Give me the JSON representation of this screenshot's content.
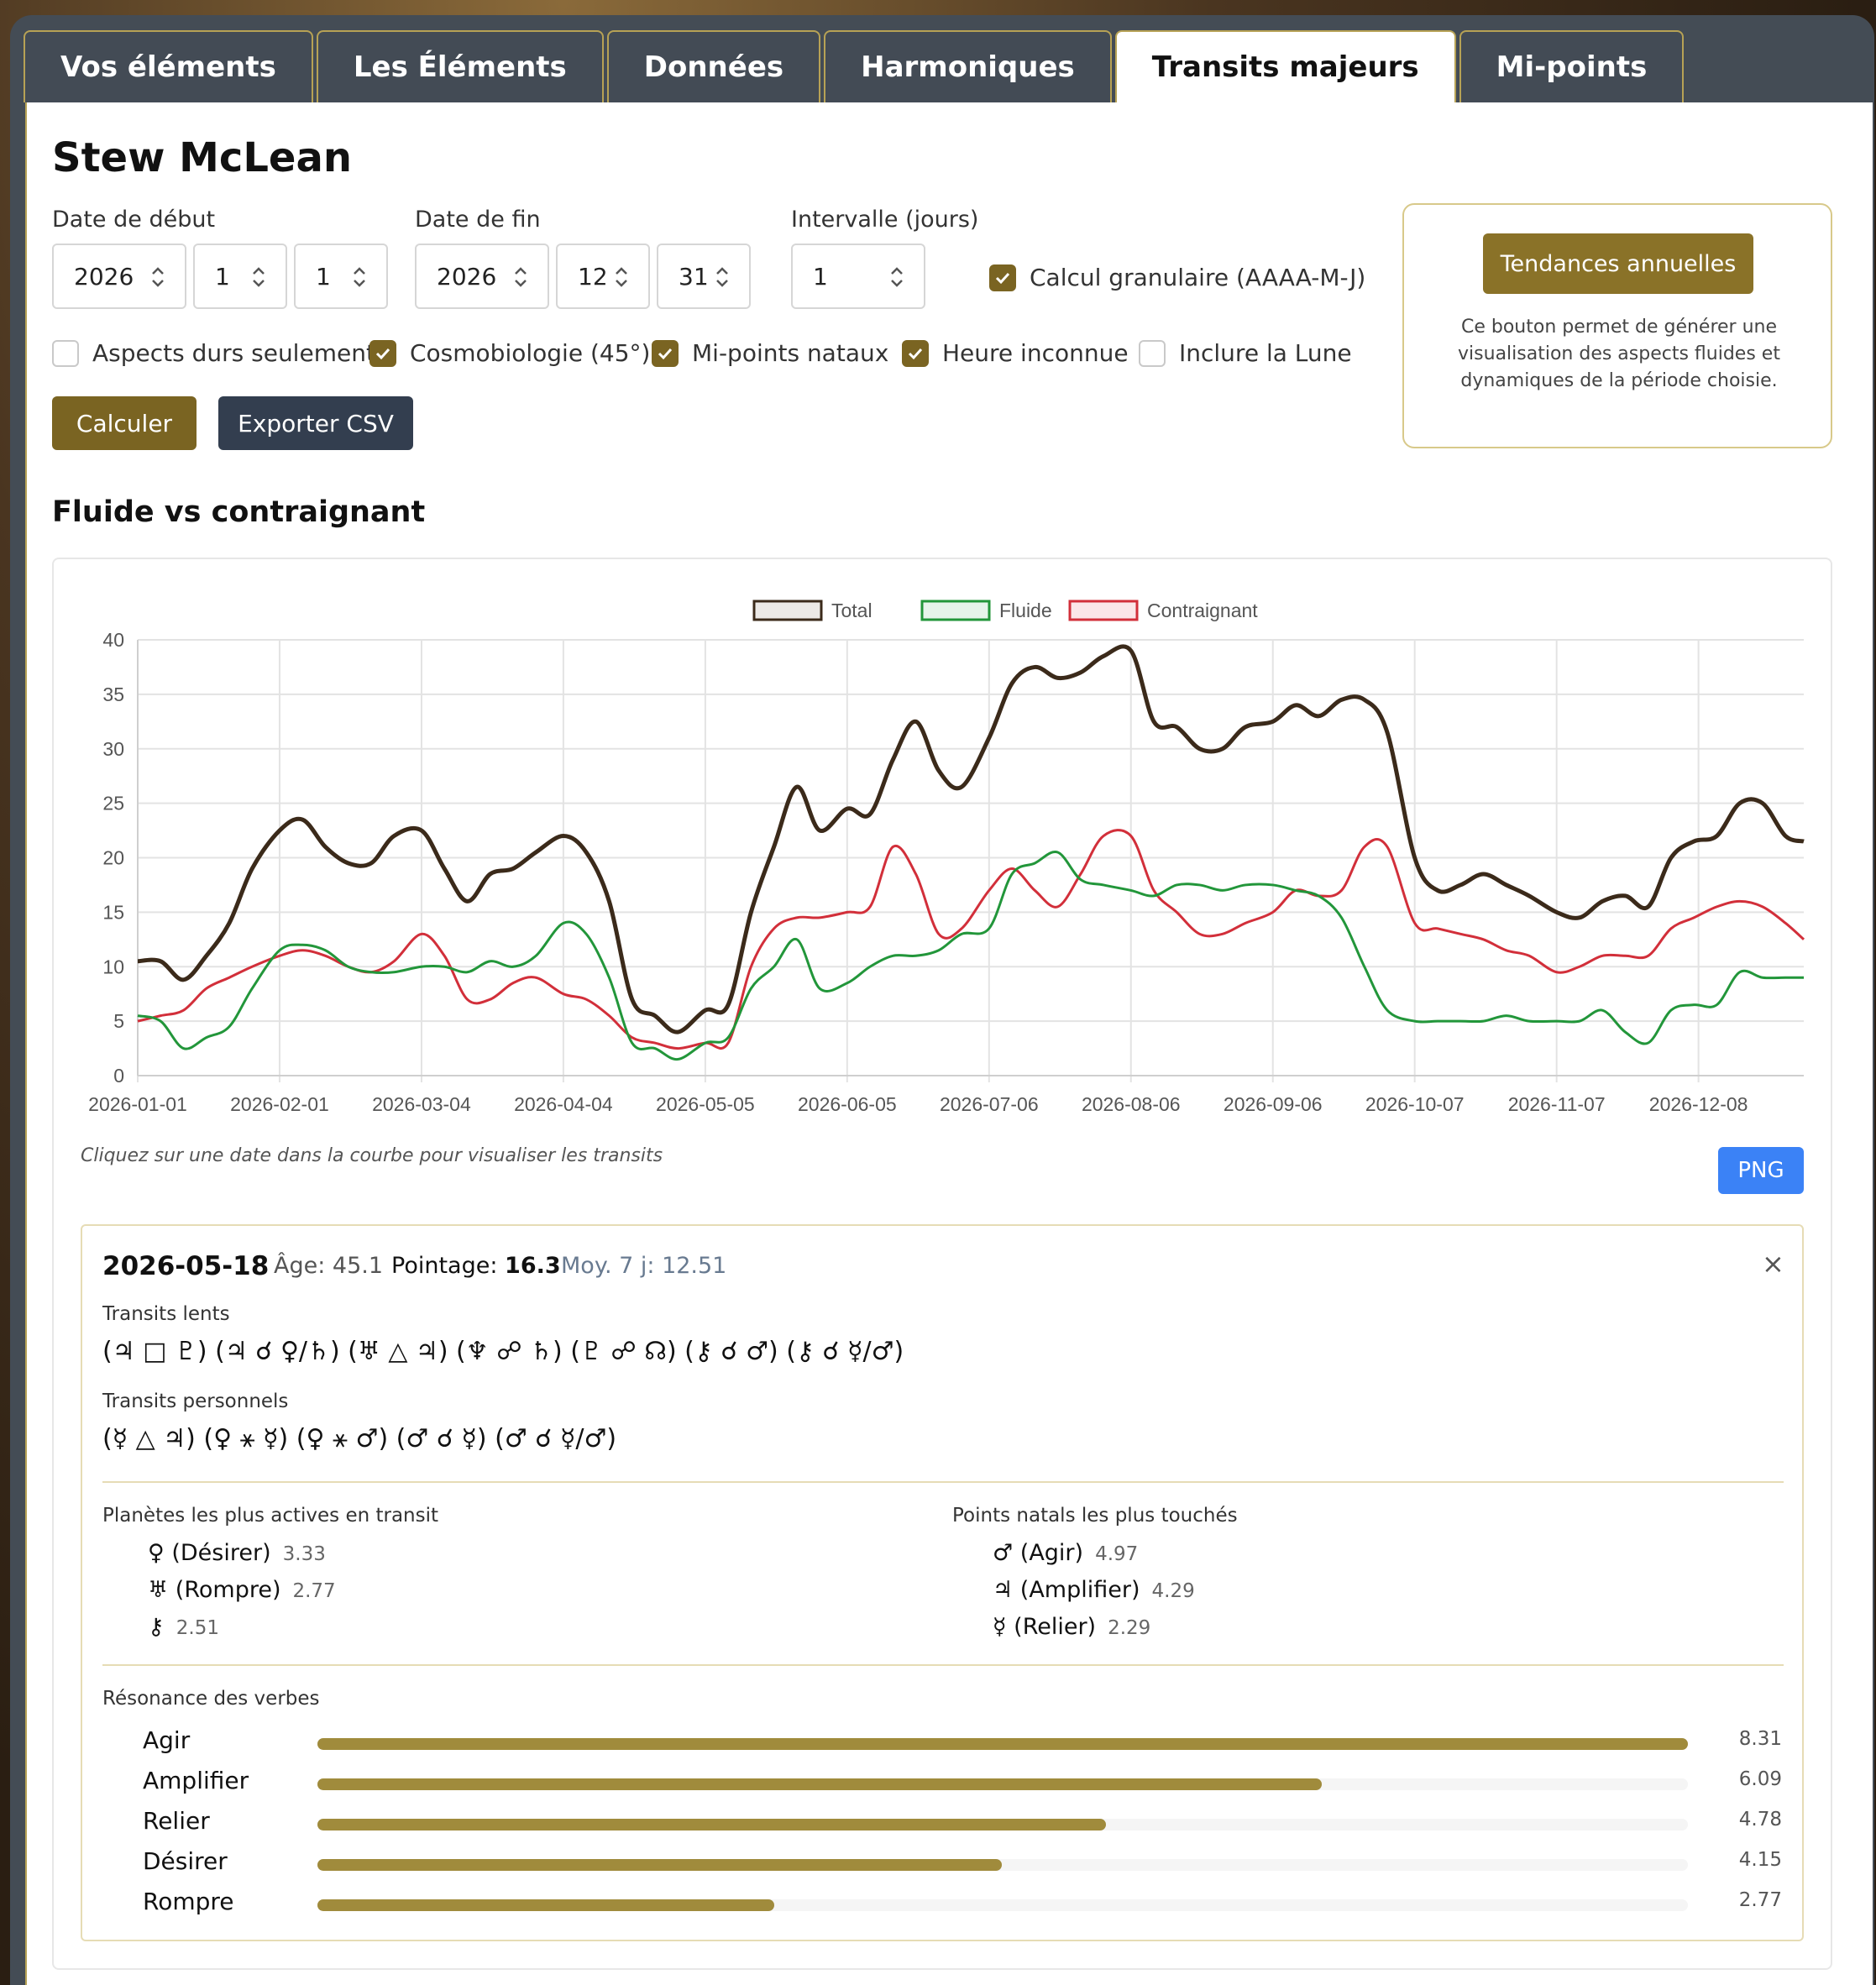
{
  "tabs": [
    "Vos éléments",
    "Les Éléments",
    "Données",
    "Harmoniques",
    "Transits majeurs",
    "Mi-points"
  ],
  "active_tab": 4,
  "person_name": "Stew McLean",
  "form": {
    "start_label": "Date de début",
    "end_label": "Date de fin",
    "interval_label": "Intervalle (jours)",
    "start": {
      "year": "2026",
      "month": "1",
      "day": "1"
    },
    "end": {
      "year": "2026",
      "month": "12",
      "day": "31"
    },
    "interval": "1",
    "granular_label": "Calcul granulaire (AAAA-M-J)",
    "granular_checked": true,
    "options": [
      {
        "label": "Aspects durs seulement",
        "checked": false
      },
      {
        "label": "Cosmobiologie (45°)",
        "checked": true
      },
      {
        "label": "Mi-points nataux",
        "checked": true
      },
      {
        "label": "Heure inconnue",
        "checked": true
      },
      {
        "label": "Inclure la Lune",
        "checked": false
      }
    ],
    "calc_label": "Calculer",
    "export_label": "Exporter CSV"
  },
  "trend": {
    "button_label": "Tendances annuelles",
    "description": "Ce bouton permet de générer une visualisation des aspects fluides et dynamiques de la période choisie."
  },
  "section_title": "Fluide vs contraignant",
  "chart_data": {
    "type": "line",
    "title": "",
    "xlabel": "",
    "ylabel": "",
    "ylim": [
      0,
      40
    ],
    "yticks": [
      0,
      5,
      10,
      15,
      20,
      25,
      30,
      35,
      40
    ],
    "xticks": [
      "2026-01-01",
      "2026-02-01",
      "2026-03-04",
      "2026-04-04",
      "2026-05-05",
      "2026-06-05",
      "2026-07-06",
      "2026-08-06",
      "2026-09-06",
      "2026-10-07",
      "2026-11-07",
      "2026-12-08"
    ],
    "x_day_offsets_note": "x values are days since 2026-01-01",
    "legend_position": "top",
    "grid": true,
    "x": [
      0,
      5,
      10,
      15,
      20,
      25,
      31,
      36,
      41,
      46,
      51,
      56,
      62,
      67,
      72,
      77,
      82,
      87,
      93,
      98,
      103,
      108,
      113,
      118,
      124,
      129,
      134,
      139,
      144,
      149,
      155,
      160,
      165,
      170,
      175,
      180,
      186,
      191,
      196,
      201,
      206,
      211,
      217,
      222,
      227,
      232,
      237,
      242,
      248,
      253,
      258,
      263,
      268,
      273,
      279,
      284,
      289,
      294,
      299,
      304,
      310,
      315,
      320,
      325,
      330,
      335,
      340,
      345,
      350,
      355,
      360,
      364
    ],
    "series": [
      {
        "name": "Total",
        "color": "#3b2a1a",
        "values": [
          10.5,
          10.5,
          8.8,
          11,
          14,
          19,
          22.5,
          23.5,
          21,
          19.5,
          19.5,
          22,
          22.5,
          19,
          16,
          18.5,
          19,
          20.5,
          22,
          20.5,
          16,
          7,
          5.5,
          4,
          6,
          6.5,
          15,
          21,
          26.5,
          22.5,
          24.5,
          24,
          29,
          32.5,
          28,
          26.5,
          31,
          36,
          37.5,
          36.5,
          37,
          38.5,
          39,
          32.5,
          32,
          30,
          30,
          32,
          32.5,
          34,
          33,
          34.5,
          34.5,
          31.5,
          20,
          17,
          17.5,
          18.5,
          17.5,
          16.5,
          15,
          14.5,
          16,
          16.5,
          15.5,
          20,
          21.5,
          22,
          25,
          25,
          22,
          21.5
        ]
      },
      {
        "name": "Fluide",
        "color": "#22963a",
        "values": [
          5.5,
          5,
          2.5,
          3.5,
          4.5,
          8,
          11.5,
          12,
          11.5,
          10,
          9.5,
          9.5,
          10,
          10,
          9.5,
          10.5,
          10,
          11,
          14,
          13,
          9,
          3,
          2.5,
          1.5,
          3,
          3.5,
          8,
          10,
          12.5,
          8,
          8.5,
          10,
          11,
          11,
          11.5,
          13,
          13.5,
          18.5,
          19.5,
          20.5,
          18,
          17.5,
          17,
          16.5,
          17.5,
          17.5,
          17,
          17.5,
          17.5,
          17,
          16.5,
          14.5,
          10,
          6,
          5,
          5,
          5,
          5,
          5.5,
          5,
          5,
          5,
          6,
          4,
          3,
          6,
          6.5,
          6.5,
          9.5,
          9,
          9,
          9
        ]
      },
      {
        "name": "Contraignant",
        "color": "#d22f3a",
        "values": [
          5,
          5.5,
          6,
          8,
          9,
          10,
          11,
          11.5,
          11,
          10,
          9.5,
          10.5,
          13,
          11,
          7,
          7,
          8.5,
          9,
          7.5,
          7,
          5.5,
          3.5,
          3,
          2.5,
          3,
          3,
          10,
          13.5,
          14.5,
          14.5,
          15,
          15.5,
          21,
          18.5,
          13,
          13.5,
          17,
          19,
          17,
          15.5,
          18.5,
          22,
          22,
          17,
          15,
          13,
          13,
          14,
          15,
          17,
          16.5,
          17,
          21,
          21,
          14,
          13.5,
          13,
          12.5,
          11.5,
          11,
          9.5,
          10,
          11,
          11,
          11,
          13.5,
          14.5,
          15.5,
          16,
          15.5,
          14,
          12.5
        ]
      }
    ]
  },
  "chart_hint": "Cliquez sur une date dans la courbe pour visualiser les transits",
  "png_label": "PNG",
  "detail": {
    "date": "2026-05-18",
    "age_label": "Âge:",
    "age": "45.1",
    "score_label": "Pointage:",
    "score": "16.3",
    "avg_label": "Moy. 7 j:",
    "avg": "12.51",
    "close": "×",
    "slow_title": "Transits lents",
    "slow_glyphs": "(♃ □ ♇) (♃ ☌ ♀/♄) (♅ △ ♃) (♆ ☍ ♄) (♇ ☍ ☊) (⚷ ☌ ♂) (⚷ ☌ ☿/♂)",
    "personal_title": "Transits personnels",
    "personal_glyphs": "(☿ △ ♃) (♀ ⚹ ☿) (♀ ⚹ ♂) (♂ ☌ ☿) (♂ ☌ ☿/♂)",
    "active_title": "Planètes les plus actives en transit",
    "active": [
      {
        "label": "♀ (Désirer)",
        "value": "3.33"
      },
      {
        "label": "♅ (Rompre)",
        "value": "2.77"
      },
      {
        "label": "⚷",
        "value": "2.51"
      }
    ],
    "natal_title": "Points natals les plus touchés",
    "natal": [
      {
        "label": "♂ (Agir)",
        "value": "4.97"
      },
      {
        "label": "♃ (Amplifier)",
        "value": "4.29"
      },
      {
        "label": "☿ (Relier)",
        "value": "2.29"
      }
    ],
    "verbs_title": "Résonance des verbes",
    "verbs_max": 8.31,
    "verbs": [
      {
        "label": "Agir",
        "value": "8.31",
        "amount": 8.31
      },
      {
        "label": "Amplifier",
        "value": "6.09",
        "amount": 6.09
      },
      {
        "label": "Relier",
        "value": "4.78",
        "amount": 4.78
      },
      {
        "label": "Désirer",
        "value": "4.15",
        "amount": 4.15
      },
      {
        "label": "Rompre",
        "value": "2.77",
        "amount": 2.77
      }
    ]
  },
  "colors": {
    "accent": "#7a6422",
    "dark_button": "#333e4f",
    "png_button": "#3b82f6",
    "bar": "#a08b3c"
  }
}
